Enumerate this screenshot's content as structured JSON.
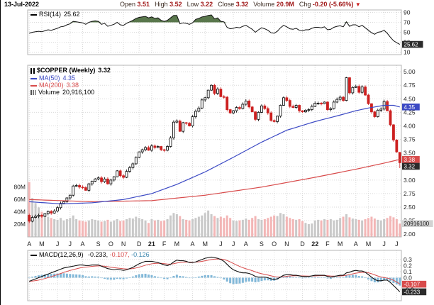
{
  "header": {
    "date": "13-Jul-2022",
    "fields": [
      {
        "label": "Open",
        "value": "3.51"
      },
      {
        "label": "High",
        "value": "3.52"
      },
      {
        "label": "Low",
        "value": "3.22"
      },
      {
        "label": "Close",
        "value": "3.32"
      },
      {
        "label": "Volume",
        "value": "20.9M"
      },
      {
        "label": "Chg",
        "value": "-0.20 (-5.66%)"
      }
    ],
    "chg_arrow": "▼"
  },
  "legends": {
    "rsi": {
      "label": "RSI(14)",
      "value": "25.62"
    },
    "symbol": {
      "label": "$COPPER (Weekly)",
      "value": "3.32"
    },
    "ma50": {
      "label": "MA(50)",
      "value": "4.35"
    },
    "ma200": {
      "label": "MA(200)",
      "value": "3.38"
    },
    "volume": {
      "label": "Volume",
      "value": "20,916,100"
    },
    "macd": {
      "label": "MACD(12,26,9)",
      "v1": "-0.233,",
      "v2": "-0.107,",
      "v3": "-0.126"
    }
  },
  "colors": {
    "accent_blue": "#3b49c4",
    "accent_red": "#d84b4b",
    "down": "#cc2020",
    "up_outline": "#000000",
    "hist": "#82b8d8",
    "vol_up": "#c9c9c9",
    "vol_down": "#f3b6b6",
    "rsi_fill": "#59774c",
    "tag_gray": "#d2d2d2",
    "tag_black": "#2b2b2b"
  },
  "axis_tags": {
    "rsi": {
      "text": "25.62",
      "value": 25.62,
      "style": "black"
    },
    "price": [
      {
        "text": "4.35",
        "value": 4.35,
        "style": "blue"
      },
      {
        "text": "3.38",
        "value": 3.38,
        "style": "red"
      },
      {
        "text": "3.32",
        "value": 3.32,
        "style": "black"
      }
    ],
    "volume": {
      "text": "20916100",
      "value_m": 20.9,
      "style": "gray"
    },
    "macd": [
      {
        "text": "-0.107",
        "value": -0.107,
        "style": "red"
      },
      {
        "text": "-0.233",
        "value": -0.233,
        "style": "black"
      }
    ]
  },
  "chart_data": [
    {
      "type": "line",
      "name": "RSI(14)",
      "ylim": [
        5,
        95
      ],
      "yticks": [
        90,
        70,
        50,
        30,
        10
      ],
      "decimals": 0,
      "overbought": 70,
      "oversold": 30,
      "last_value": 25.62,
      "values": [
        48,
        50,
        51,
        52,
        51,
        53,
        55,
        54,
        56,
        58,
        61,
        62,
        65,
        67,
        72,
        71,
        70,
        69,
        66,
        70,
        72,
        73,
        72,
        66,
        68,
        62,
        64,
        66,
        70,
        65,
        64,
        68,
        71,
        74,
        78,
        80,
        81,
        82,
        79,
        81,
        78,
        79,
        74,
        72,
        74,
        79,
        84,
        84,
        67,
        69,
        68,
        66,
        69,
        76,
        78,
        81,
        82,
        84,
        85,
        77,
        79,
        72,
        71,
        60,
        57,
        58,
        60,
        59,
        62,
        64,
        60,
        56,
        50,
        55,
        59,
        57,
        54,
        49,
        48,
        52,
        59,
        64,
        61,
        57,
        56,
        58,
        54,
        53,
        55,
        55,
        58,
        60,
        60,
        59,
        61,
        55,
        56,
        60,
        62,
        63,
        61,
        71,
        62,
        65,
        65,
        61,
        64,
        59,
        54,
        49,
        46,
        50,
        51,
        54,
        48,
        40,
        33,
        29,
        25.62
      ]
    },
    {
      "type": "candlestick",
      "name": "$COPPER (Weekly)",
      "ylim": [
        1.95,
        5.12
      ],
      "yticks": [
        5.0,
        4.75,
        4.5,
        4.25,
        4.0,
        3.75,
        3.5,
        3.25,
        3.0,
        2.75,
        2.5,
        2.25,
        2.0
      ],
      "hide_tick_labels": [
        3.25
      ],
      "decimals": 2,
      "x_labels": [
        "A",
        "M",
        "J",
        "J",
        "A",
        "S",
        "O",
        "N",
        "D",
        "21",
        "F",
        "M",
        "A",
        "M",
        "J",
        "J",
        "A",
        "S",
        "O",
        "N",
        "D",
        "22",
        "F",
        "M",
        "A",
        "M",
        "J",
        "J"
      ],
      "x_label_indices": [
        0,
        4,
        9,
        13,
        17,
        22,
        26,
        30,
        35,
        39,
        43,
        47,
        52,
        56,
        61,
        65,
        69,
        74,
        78,
        82,
        87,
        91,
        95,
        99,
        104,
        108,
        113,
        117
      ],
      "first_open": 2.35,
      "close": [
        2.24,
        2.31,
        2.33,
        2.35,
        2.33,
        2.38,
        2.42,
        2.39,
        2.43,
        2.49,
        2.57,
        2.6,
        2.67,
        2.72,
        2.89,
        2.9,
        2.87,
        2.86,
        2.81,
        2.93,
        2.98,
        3.02,
        3.04,
        2.97,
        3.02,
        2.93,
        3.0,
        3.06,
        3.17,
        3.08,
        3.05,
        3.16,
        3.23,
        3.3,
        3.42,
        3.52,
        3.56,
        3.6,
        3.55,
        3.63,
        3.6,
        3.62,
        3.56,
        3.55,
        3.62,
        3.78,
        4.07,
        4.09,
        3.9,
        4.06,
        4.05,
        4.0,
        4.17,
        4.27,
        4.33,
        4.48,
        4.52,
        4.66,
        4.75,
        4.6,
        4.68,
        4.54,
        4.53,
        4.3,
        4.24,
        4.28,
        4.34,
        4.32,
        4.4,
        4.46,
        4.35,
        4.26,
        4.12,
        4.25,
        4.37,
        4.32,
        4.24,
        4.1,
        4.08,
        4.18,
        4.38,
        4.52,
        4.47,
        4.36,
        4.34,
        4.38,
        4.28,
        4.26,
        4.29,
        4.3,
        4.36,
        4.42,
        4.42,
        4.41,
        4.44,
        4.3,
        4.32,
        4.44,
        4.49,
        4.53,
        4.47,
        4.89,
        4.61,
        4.71,
        4.73,
        4.62,
        4.72,
        4.57,
        4.41,
        4.26,
        4.17,
        4.29,
        4.31,
        4.45,
        4.28,
        4.02,
        3.74,
        3.52,
        3.32
      ],
      "last_candle": {
        "open": 3.51,
        "high": 3.52,
        "low": 3.22,
        "close": 3.32
      },
      "volume_m": [
        88,
        62,
        54,
        47,
        40,
        35,
        32,
        30,
        28,
        27,
        30,
        26,
        28,
        30,
        34,
        28,
        26,
        25,
        24,
        26,
        28,
        27,
        26,
        24,
        25,
        27,
        24,
        26,
        28,
        25,
        26,
        28,
        30,
        29,
        32,
        30,
        28,
        26,
        22,
        28,
        26,
        27,
        25,
        26,
        28,
        34,
        38,
        36,
        33,
        28,
        27,
        26,
        28,
        30,
        32,
        34,
        38,
        42,
        36,
        33,
        30,
        32,
        30,
        34,
        30,
        26,
        25,
        26,
        27,
        29,
        27,
        30,
        33,
        28,
        27,
        28,
        30,
        32,
        34,
        33,
        38,
        36,
        32,
        30,
        28,
        27,
        28,
        25,
        22,
        20,
        21,
        26,
        27,
        26,
        28,
        27,
        28,
        26,
        27,
        30,
        32,
        36,
        31,
        29,
        28,
        27,
        26,
        28,
        30,
        32,
        29,
        27,
        26,
        28,
        30,
        33,
        31,
        28,
        20.9
      ],
      "volume_ticks": [
        80,
        60,
        40,
        20
      ],
      "ma50_value": 4.35,
      "ma200_value": 3.38,
      "ma50_keypoints": [
        [
          0,
          2.6
        ],
        [
          10,
          2.56
        ],
        [
          20,
          2.58
        ],
        [
          30,
          2.64
        ],
        [
          39,
          2.75
        ],
        [
          47,
          2.92
        ],
        [
          56,
          3.15
        ],
        [
          65,
          3.42
        ],
        [
          74,
          3.7
        ],
        [
          82,
          3.92
        ],
        [
          91,
          4.08
        ],
        [
          99,
          4.2
        ],
        [
          104,
          4.28
        ],
        [
          108,
          4.33
        ],
        [
          113,
          4.38
        ],
        [
          116,
          4.38
        ],
        [
          118,
          4.35
        ]
      ],
      "ma200_keypoints": [
        [
          0,
          2.64
        ],
        [
          20,
          2.6
        ],
        [
          39,
          2.62
        ],
        [
          56,
          2.72
        ],
        [
          74,
          2.87
        ],
        [
          91,
          3.05
        ],
        [
          104,
          3.2
        ],
        [
          112,
          3.3
        ],
        [
          118,
          3.38
        ]
      ]
    },
    {
      "type": "macd",
      "name": "MACD(12,26,9)",
      "ylim": [
        -0.38,
        0.45
      ],
      "yticks": [
        0.3,
        0.2,
        0.1,
        0,
        -0.1,
        -0.2
      ],
      "decimals": 1,
      "macd": [
        -0.06,
        -0.04,
        -0.02,
        0.0,
        0.02,
        0.04,
        0.06,
        0.08,
        0.1,
        0.12,
        0.14,
        0.16,
        0.17,
        0.18,
        0.19,
        0.2,
        0.21,
        0.21,
        0.2,
        0.2,
        0.21,
        0.21,
        0.21,
        0.19,
        0.17,
        0.15,
        0.14,
        0.13,
        0.14,
        0.13,
        0.12,
        0.13,
        0.15,
        0.17,
        0.2,
        0.23,
        0.25,
        0.27,
        0.27,
        0.27,
        0.26,
        0.25,
        0.23,
        0.21,
        0.2,
        0.22,
        0.26,
        0.29,
        0.28,
        0.28,
        0.27,
        0.25,
        0.25,
        0.26,
        0.28,
        0.3,
        0.32,
        0.33,
        0.34,
        0.33,
        0.32,
        0.3,
        0.27,
        0.22,
        0.17,
        0.13,
        0.11,
        0.09,
        0.08,
        0.08,
        0.07,
        0.05,
        0.02,
        0.01,
        0.01,
        0.01,
        0.0,
        -0.02,
        -0.03,
        -0.02,
        0.01,
        0.04,
        0.05,
        0.05,
        0.04,
        0.04,
        0.03,
        0.02,
        0.02,
        0.02,
        0.03,
        0.04,
        0.04,
        0.04,
        0.04,
        0.02,
        0.01,
        0.02,
        0.03,
        0.04,
        0.04,
        0.08,
        0.09,
        0.11,
        0.12,
        0.11,
        0.11,
        0.09,
        0.05,
        0.01,
        -0.03,
        -0.05,
        -0.05,
        -0.04,
        -0.04,
        -0.08,
        -0.13,
        -0.18,
        -0.233
      ],
      "macd_last": -0.233,
      "signal_last": -0.107,
      "hist_last": -0.126,
      "signal_period": 9
    }
  ]
}
